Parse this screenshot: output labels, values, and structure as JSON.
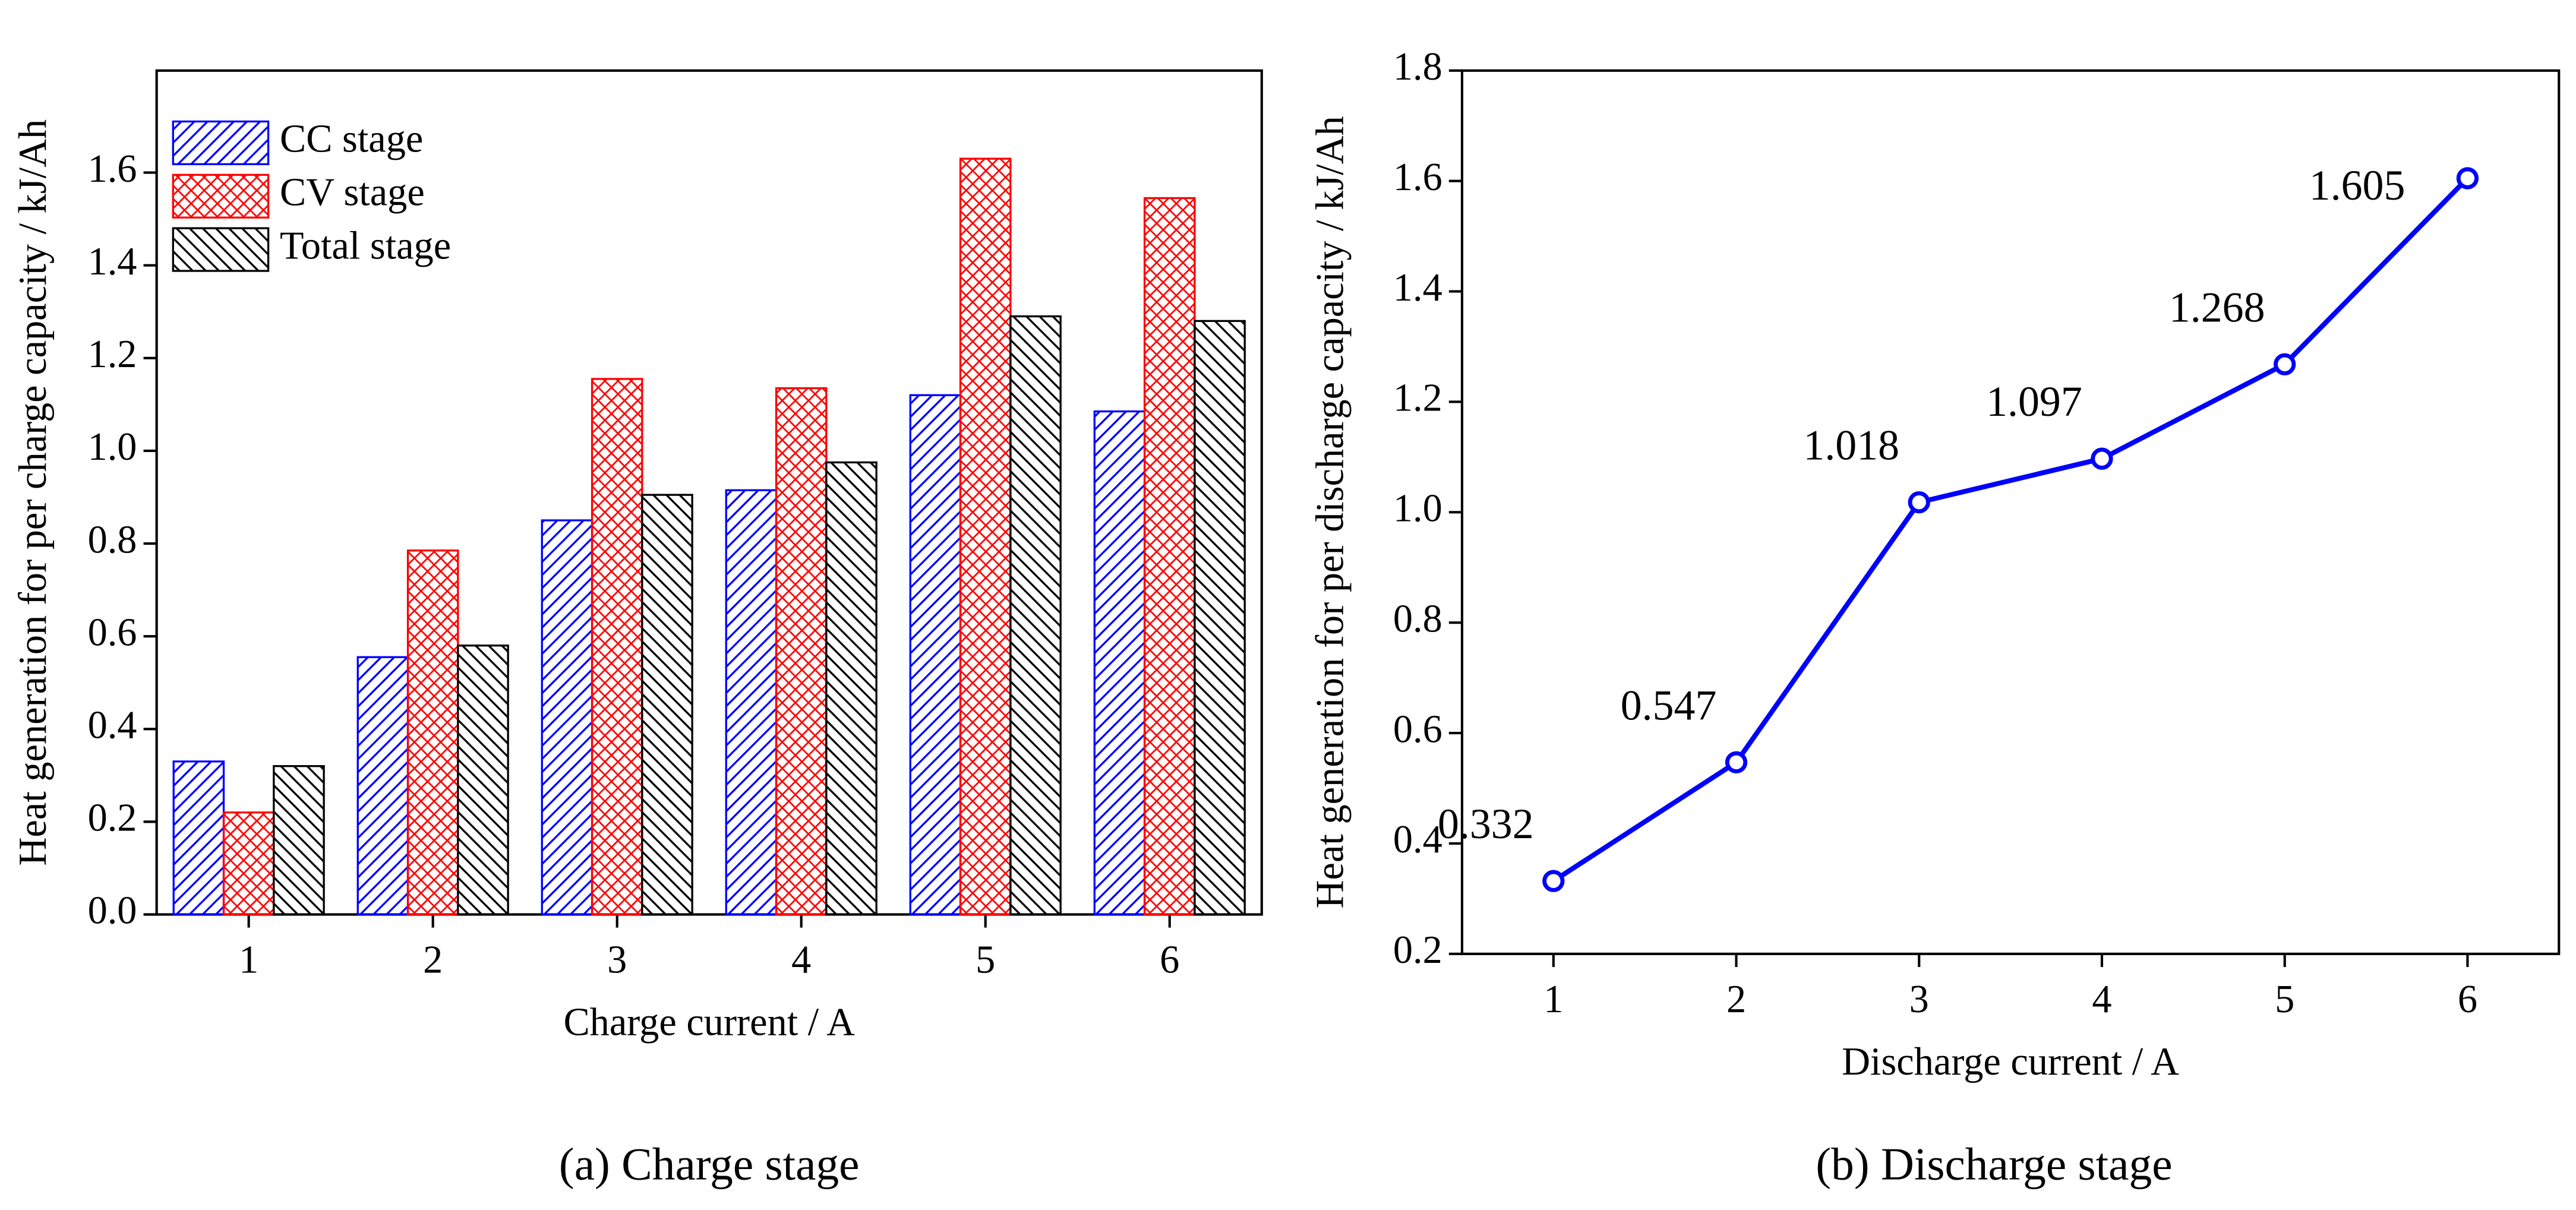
{
  "chart_data": [
    {
      "type": "bar",
      "y_label": "Heat generation for per charge capacity / kJ/Ah",
      "x_label": "Charge current / A",
      "caption": "(a) Charge stage",
      "categories": [
        "1",
        "2",
        "3",
        "4",
        "5",
        "6"
      ],
      "series": [
        {
          "name": "CC stage",
          "color": "#0000ff",
          "hatch": "/",
          "values": [
            0.33,
            0.555,
            0.85,
            0.915,
            1.12,
            1.085
          ]
        },
        {
          "name": "CV stage",
          "color": "#ff0000",
          "hatch": "x",
          "values": [
            0.22,
            0.785,
            1.155,
            1.135,
            1.63,
            1.545
          ]
        },
        {
          "name": "Total stage",
          "color": "#000000",
          "hatch": "\\",
          "values": [
            0.32,
            0.58,
            0.905,
            0.975,
            1.29,
            1.28
          ]
        }
      ],
      "ylim": [
        0,
        1.82
      ],
      "yticks": [
        {
          "value": 0,
          "label": "0.0"
        },
        0.2,
        0.4,
        0.6,
        0.8,
        {
          "value": 1,
          "label": "1.0"
        },
        1.2,
        1.4,
        1.6
      ],
      "legend": "upper left"
    },
    {
      "type": "line",
      "y_label": "Heat generation for per discharge capacity / kJ/Ah",
      "x_label": "Discharge current / A",
      "caption": "(b) Discharge stage",
      "x": [
        1,
        2,
        3,
        4,
        5,
        6
      ],
      "series": [
        {
          "color": "#0000ff",
          "values": [
            0.332,
            0.547,
            1.018,
            1.097,
            1.268,
            1.605
          ]
        }
      ],
      "xlim": [
        0.5,
        6.5
      ],
      "xticks": [
        1,
        2,
        3,
        4,
        5,
        6
      ],
      "ylim": [
        0.2,
        1.8
      ],
      "yticks": [
        0.2,
        0.4,
        0.6,
        0.8,
        {
          "value": 1,
          "label": "1.0"
        },
        1.2,
        1.4,
        1.6,
        1.8
      ]
    }
  ]
}
